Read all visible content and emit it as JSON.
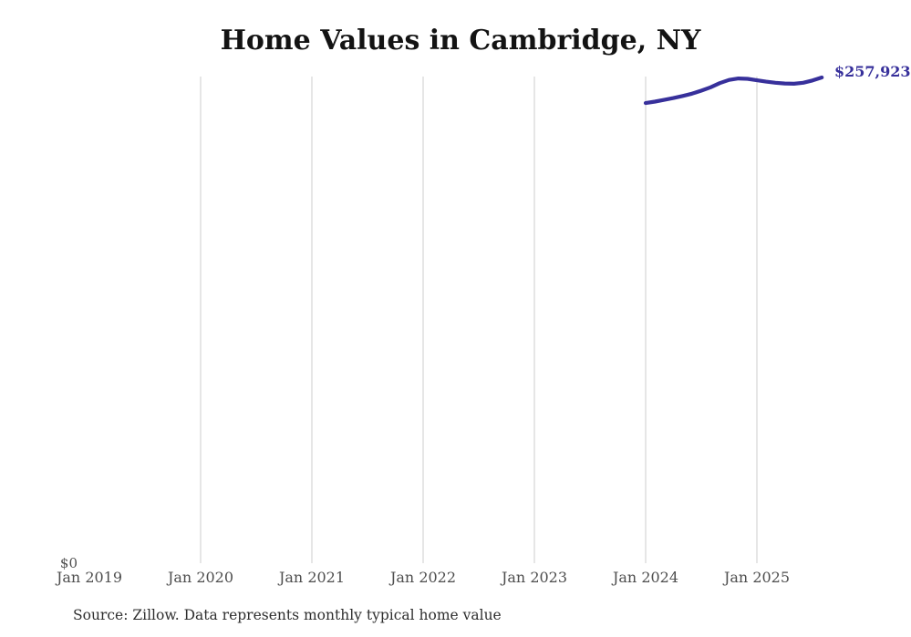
{
  "title": "Home Values in Cambridge, NY",
  "x_axis": {
    "ticks": [
      "Jan 2019",
      "Jan 2020",
      "Jan 2021",
      "Jan 2022",
      "Jan 2023",
      "Jan 2024",
      "Jan 2025"
    ]
  },
  "y_axis": {
    "zero_label": "$0"
  },
  "end_label": "$257,923",
  "source_note": "Source: Zillow. Data represents monthly typical home value",
  "colors": {
    "line": "#37309b",
    "grid": "#cdcdcd",
    "title_text": "#131313",
    "tick_text": "#4e4e4e",
    "source_text": "#2e2e2e",
    "value_label": "#37309b",
    "background": "#ffffff"
  },
  "chart_data": {
    "type": "line",
    "title": "Home Values in Cambridge, NY",
    "series_name": "Monthly typical home value",
    "unit": "USD",
    "x": [
      "Jan 2024",
      "Feb 2024",
      "Mar 2024",
      "Apr 2024",
      "May 2024",
      "Jun 2024",
      "Jul 2024",
      "Aug 2024",
      "Sep 2024",
      "Oct 2024",
      "Nov 2024",
      "Dec 2024",
      "Jan 2025",
      "Feb 2025",
      "Mar 2025",
      "Apr 2025",
      "May 2025",
      "Jun 2025",
      "Jul 2025",
      "Aug 2025"
    ],
    "values": [
      244300,
      245100,
      246000,
      247000,
      248100,
      249300,
      250900,
      252700,
      254900,
      256600,
      257400,
      257200,
      256400,
      255700,
      255100,
      254700,
      254600,
      255100,
      256300,
      257923
    ],
    "latest_value_label": "$257,923",
    "xlabel": "",
    "ylabel": "",
    "ylim": [
      0,
      258400
    ],
    "x_axis_range": [
      "Jan 2019",
      "Jan 2026"
    ],
    "grid": "vertical-yearly",
    "legend": "none"
  }
}
